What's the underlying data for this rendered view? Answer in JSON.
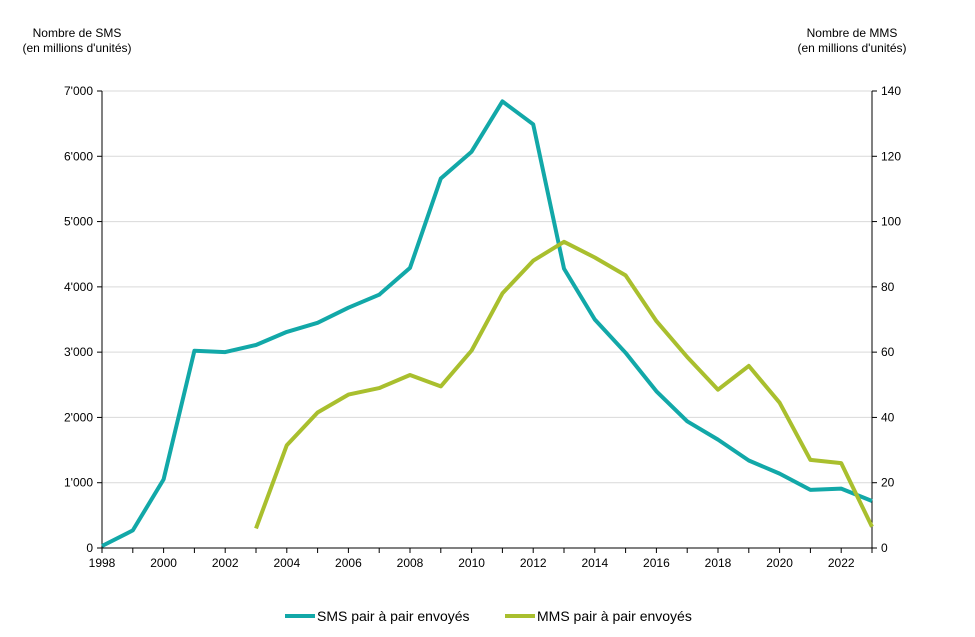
{
  "chart_data": {
    "type": "line",
    "title": "",
    "xlabel": "",
    "ylabel_left": [
      "Nombre de SMS",
      "(en millions d'unités)"
    ],
    "ylabel_right": [
      "Nombre de MMS",
      "(en millions d'unités)"
    ],
    "xlim": [
      1998,
      2023
    ],
    "ylim_left": [
      0,
      7000
    ],
    "ylim_right": [
      0,
      140
    ],
    "x_ticks": [
      1998,
      2000,
      2002,
      2004,
      2006,
      2008,
      2010,
      2012,
      2014,
      2016,
      2018,
      2020,
      2022
    ],
    "y_ticks_left": [
      "0",
      "1'000",
      "2'000",
      "3'000",
      "4'000",
      "5'000",
      "6'000",
      "7'000"
    ],
    "y_ticks_left_values": [
      0,
      1000,
      2000,
      3000,
      4000,
      5000,
      6000,
      7000
    ],
    "y_ticks_right": [
      "0",
      "20",
      "40",
      "60",
      "80",
      "100",
      "120",
      "140"
    ],
    "y_ticks_right_values": [
      0,
      20,
      40,
      60,
      80,
      100,
      120,
      140
    ],
    "grid": true,
    "legend_position": "bottom-center",
    "series": [
      {
        "name": "SMS pair à pair envoyés",
        "axis": "left",
        "color": "#12A8A8",
        "x": [
          1998,
          1999,
          2000,
          2001,
          2002,
          2003,
          2004,
          2005,
          2006,
          2007,
          2008,
          2009,
          2010,
          2011,
          2012,
          2013,
          2014,
          2015,
          2016,
          2017,
          2018,
          2019,
          2020,
          2021,
          2022,
          2023
        ],
        "y": [
          30,
          270,
          1050,
          3020,
          3000,
          3110,
          3310,
          3450,
          3680,
          3880,
          4290,
          5660,
          6070,
          6840,
          6490,
          4280,
          3500,
          2990,
          2400,
          1940,
          1660,
          1340,
          1140,
          890,
          910,
          720
        ]
      },
      {
        "name": "MMS pair à pair envoyés",
        "axis": "right",
        "color": "#A9BF2E",
        "x": [
          2003,
          2004,
          2005,
          2006,
          2007,
          2008,
          2009,
          2010,
          2011,
          2012,
          2013,
          2014,
          2015,
          2016,
          2017,
          2018,
          2019,
          2020,
          2021,
          2022,
          2023
        ],
        "y": [
          6,
          31.5,
          41.5,
          47,
          49,
          53,
          49.5,
          60.5,
          78,
          88,
          93.8,
          89,
          83.5,
          69.5,
          58.5,
          48.5,
          55.8,
          44.5,
          27,
          26,
          6.5
        ]
      }
    ]
  }
}
